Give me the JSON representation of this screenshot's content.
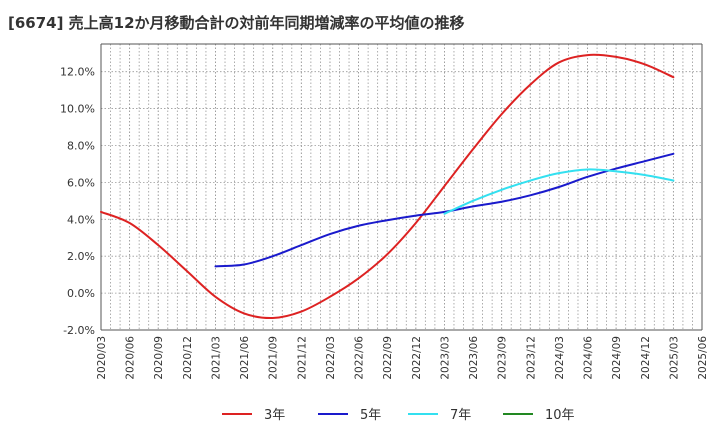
{
  "title": "[6674]  売上高12か月移動合計の対前年同期増減率の平均値の推移",
  "chart_data": {
    "type": "line",
    "title": "[6674]  売上高12か月移動合計の対前年同期増減率の平均値の推移",
    "xlabel": "",
    "ylabel": "",
    "ylim": [
      -2.0,
      13.5
    ],
    "y_ticks": [
      "-2.0%",
      "0.0%",
      "2.0%",
      "4.0%",
      "6.0%",
      "8.0%",
      "10.0%",
      "12.0%"
    ],
    "y_tick_values": [
      -2,
      0,
      2,
      4,
      6,
      8,
      10,
      12
    ],
    "x_ticks": [
      "2020/03",
      "2020/06",
      "2020/09",
      "2020/12",
      "2021/03",
      "2021/06",
      "2021/09",
      "2021/12",
      "2022/03",
      "2022/06",
      "2022/09",
      "2022/12",
      "2023/03",
      "2023/06",
      "2023/09",
      "2023/12",
      "2024/03",
      "2024/06",
      "2024/09",
      "2024/12",
      "2025/03",
      "2025/06"
    ],
    "grid": true,
    "legend_position": "bottom",
    "series": [
      {
        "name": "3年",
        "color": "#dd2222",
        "x": [
          "2020/03",
          "2020/06",
          "2020/09",
          "2020/12",
          "2021/03",
          "2021/06",
          "2021/09",
          "2021/12",
          "2022/03",
          "2022/06",
          "2022/09",
          "2022/12",
          "2023/03",
          "2023/06",
          "2023/09",
          "2023/12",
          "2024/03",
          "2024/06",
          "2024/09",
          "2024/12",
          "2025/03"
        ],
        "values": [
          4.4,
          3.8,
          2.6,
          1.2,
          -0.2,
          -1.1,
          -1.35,
          -1.0,
          -0.2,
          0.8,
          2.1,
          3.8,
          5.8,
          7.8,
          9.7,
          11.3,
          12.5,
          12.9,
          12.8,
          12.4,
          11.7
        ]
      },
      {
        "name": "5年",
        "color": "#1a1acc",
        "x": [
          "2021/03",
          "2021/06",
          "2021/09",
          "2021/12",
          "2022/03",
          "2022/06",
          "2022/09",
          "2022/12",
          "2023/03",
          "2023/06",
          "2023/09",
          "2023/12",
          "2024/03",
          "2024/06",
          "2024/09",
          "2024/12",
          "2025/03"
        ],
        "values": [
          1.45,
          1.55,
          2.0,
          2.6,
          3.2,
          3.65,
          3.95,
          4.2,
          4.4,
          4.7,
          4.95,
          5.3,
          5.75,
          6.3,
          6.75,
          7.15,
          7.55
        ]
      },
      {
        "name": "7年",
        "color": "#33e0f0",
        "x": [
          "2023/03",
          "2023/06",
          "2023/09",
          "2023/12",
          "2024/03",
          "2024/06",
          "2024/09",
          "2024/12",
          "2025/03"
        ],
        "values": [
          4.3,
          5.0,
          5.6,
          6.1,
          6.5,
          6.7,
          6.6,
          6.4,
          6.1
        ]
      },
      {
        "name": "10年",
        "color": "#228822",
        "x": [],
        "values": []
      }
    ]
  }
}
